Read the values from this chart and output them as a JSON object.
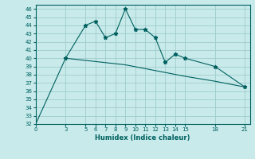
{
  "xlabel": "Humidex (Indice chaleur)",
  "line_color": "#006060",
  "bg_color": "#c8eaea",
  "grid_color": "#a0cccc",
  "ylim": [
    32,
    46.5
  ],
  "xlim": [
    0,
    21.5
  ],
  "yticks": [
    32,
    33,
    34,
    35,
    36,
    37,
    38,
    39,
    40,
    41,
    42,
    43,
    44,
    45,
    46
  ],
  "xticks": [
    0,
    3,
    5,
    6,
    7,
    8,
    9,
    10,
    11,
    12,
    13,
    14,
    15,
    18,
    21
  ],
  "data_x": [
    3,
    5,
    6,
    7,
    8,
    9,
    10,
    11,
    12,
    13,
    14,
    15,
    18,
    21
  ],
  "data_y": [
    40,
    44,
    44.5,
    42.5,
    43,
    46,
    43.5,
    43.5,
    42.5,
    39.5,
    40.5,
    40,
    39,
    36.5
  ],
  "trend_x": [
    0,
    3,
    9,
    12,
    15,
    18,
    21
  ],
  "trend_y": [
    32,
    40,
    39.2,
    38.5,
    37.8,
    37.2,
    36.5
  ]
}
